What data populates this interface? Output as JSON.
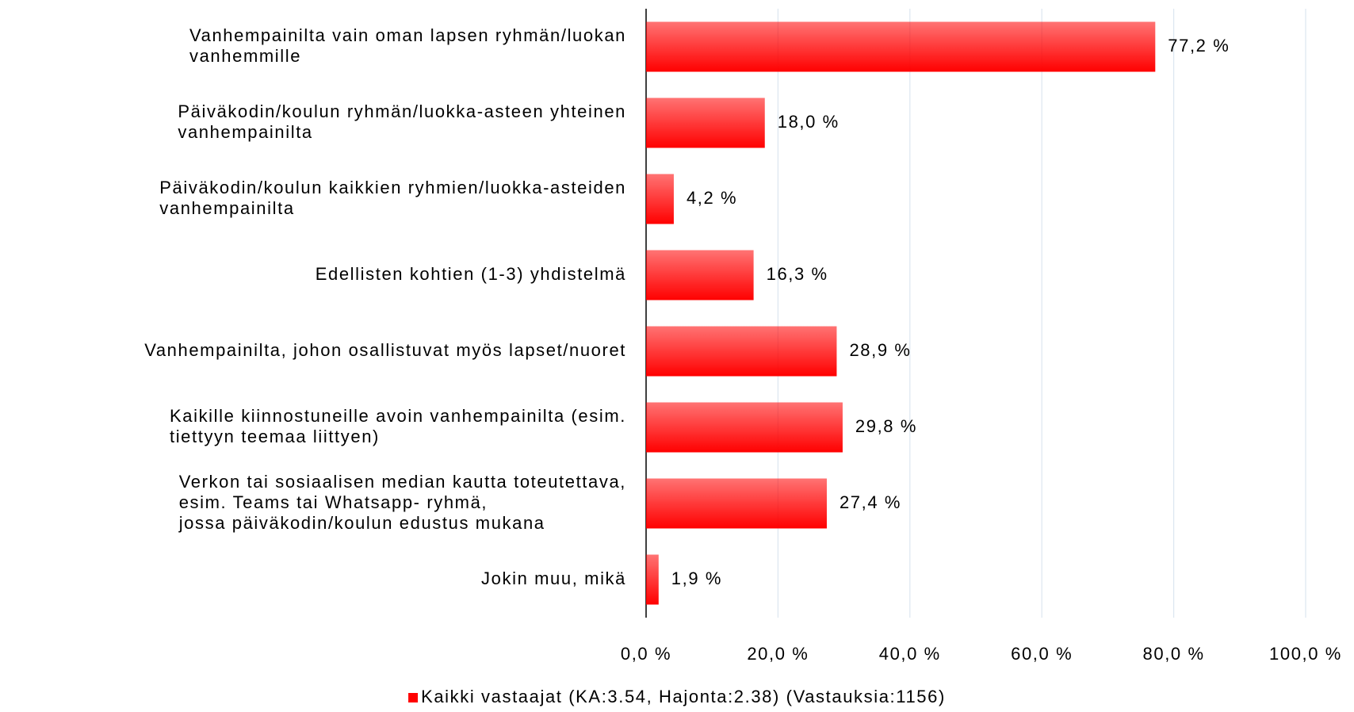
{
  "chart_data": {
    "type": "bar",
    "orientation": "horizontal",
    "categories": [
      [
        "Vanhempainilta vain oman lapsen ryhmän/luokan",
        "vanhemmille"
      ],
      [
        "Päiväkodin/koulun ryhmän/luokka-asteen yhteinen",
        "vanhempainilta"
      ],
      [
        "Päiväkodin/koulun kaikkien ryhmien/luokka-asteiden",
        "vanhempainilta"
      ],
      [
        "Edellisten kohtien (1-3) yhdistelmä"
      ],
      [
        "Vanhempainilta, johon osallistuvat myös lapset/nuoret"
      ],
      [
        "Kaikille kiinnostuneille avoin vanhempainilta (esim.",
        "tiettyyn teemaa liittyen)"
      ],
      [
        "Verkon tai sosiaalisen median kautta toteutettava,",
        "esim. Teams tai Whatsapp- ryhmä,",
        "jossa  päiväkodin/koulun edustus mukana"
      ],
      [
        "Jokin muu, mikä"
      ]
    ],
    "series": [
      {
        "name": "Kaikki vastaajat (KA:3.54, Hajonta:2.38) (Vastauksia:1156)",
        "color": "#ff0000",
        "values": [
          77.2,
          18.0,
          4.2,
          16.3,
          28.9,
          29.8,
          27.4,
          1.9
        ],
        "value_labels": [
          "77,2 %",
          "18,0 %",
          "4,2 %",
          "16,3 %",
          "28,9 %",
          "29,8 %",
          "27,4 %",
          "1,9 %"
        ]
      }
    ],
    "xlim": [
      0,
      100
    ],
    "xticks": [
      {
        "value": 0,
        "label": "0,0 %"
      },
      {
        "value": 20,
        "label": "20,0 %"
      },
      {
        "value": 40,
        "label": "40,0 %"
      },
      {
        "value": 60,
        "label": "60,0 %"
      },
      {
        "value": 80,
        "label": "80,0 %"
      },
      {
        "value": 100,
        "label": "100,0 %"
      }
    ],
    "grid": true,
    "legend": "bottom"
  }
}
